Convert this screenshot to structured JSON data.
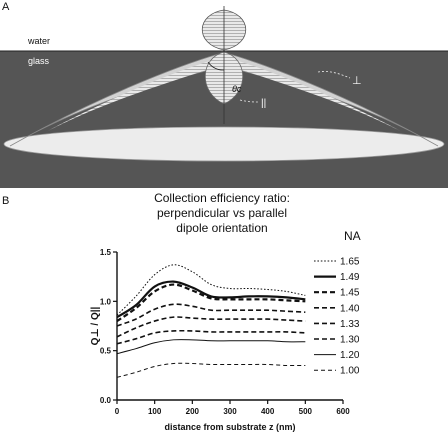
{
  "panel_a": {
    "label": "A",
    "water_label": "water",
    "glass_label": "glass",
    "angle_label": "θc",
    "perp_label": "⊥",
    "par_label": "||",
    "colors": {
      "water": "#ffffff",
      "glass": "#555555",
      "lobe": "#d2d2d2",
      "bottom_ellipse": "#ececec"
    }
  },
  "panel_b": {
    "label": "B",
    "chart_data": {
      "type": "line",
      "title_lines": [
        "Collection efficiency ratio:",
        "perpendicular vs parallel",
        "dipole orientation"
      ],
      "xlabel": "distance from substrate z (nm)",
      "ylabel": "Q⊥ / Q||",
      "xlim": [
        0,
        600
      ],
      "ylim": [
        0.0,
        1.5
      ],
      "xticks": [
        "0",
        "100",
        "200",
        "300",
        "400",
        "500",
        "600"
      ],
      "yticks": [
        "0.0",
        "0.5",
        "1.0",
        "1.5"
      ],
      "xtick_values": [
        0,
        100,
        200,
        300,
        400,
        500,
        600
      ],
      "ytick_values": [
        0.0,
        0.5,
        1.0,
        1.5
      ],
      "legend_title": "NA",
      "legend_position": "right",
      "x": [
        0,
        50,
        100,
        150,
        200,
        250,
        300,
        350,
        400,
        450,
        500
      ],
      "series": [
        {
          "name": "1.65",
          "style": "dotted",
          "width": 1,
          "values": [
            0.86,
            1.05,
            1.27,
            1.37,
            1.3,
            1.17,
            1.13,
            1.13,
            1.12,
            1.1,
            1.06
          ]
        },
        {
          "name": "1.49",
          "style": "solid",
          "width": 2.2,
          "values": [
            0.84,
            0.96,
            1.15,
            1.2,
            1.14,
            1.05,
            1.04,
            1.05,
            1.05,
            1.04,
            1.02
          ]
        },
        {
          "name": "1.45",
          "style": "dashed",
          "width": 2.2,
          "values": [
            0.8,
            0.93,
            1.1,
            1.17,
            1.11,
            1.03,
            1.02,
            1.02,
            1.02,
            1.01,
            1.0
          ]
        },
        {
          "name": "1.40",
          "style": "dashed",
          "width": 1.6,
          "values": [
            0.75,
            0.82,
            0.92,
            0.97,
            0.95,
            0.91,
            0.91,
            0.91,
            0.91,
            0.9,
            0.89
          ]
        },
        {
          "name": "1.33",
          "style": "dashed",
          "width": 1.6,
          "values": [
            0.64,
            0.73,
            0.8,
            0.84,
            0.83,
            0.82,
            0.82,
            0.82,
            0.82,
            0.81,
            0.8
          ]
        },
        {
          "name": "1.30",
          "style": "dashed",
          "width": 1.6,
          "values": [
            0.57,
            0.62,
            0.68,
            0.7,
            0.7,
            0.69,
            0.69,
            0.69,
            0.69,
            0.69,
            0.68
          ]
        },
        {
          "name": "1.20",
          "style": "solid",
          "width": 1,
          "values": [
            0.47,
            0.52,
            0.58,
            0.61,
            0.61,
            0.6,
            0.6,
            0.6,
            0.6,
            0.59,
            0.59
          ]
        },
        {
          "name": "1.00",
          "style": "longdash",
          "width": 1,
          "values": [
            0.23,
            0.28,
            0.34,
            0.37,
            0.37,
            0.36,
            0.36,
            0.36,
            0.36,
            0.35,
            0.35
          ]
        }
      ]
    }
  }
}
